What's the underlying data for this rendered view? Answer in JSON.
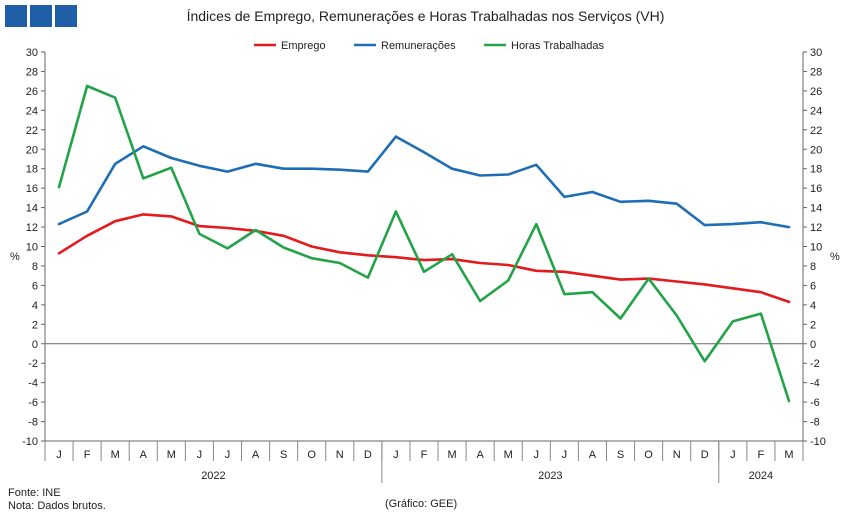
{
  "header": {
    "title": "Índices de Emprego, Remunerações e Horas Trabalhadas nos Serviços (VH)",
    "logo_color": "#1f5fa8"
  },
  "footer": {
    "source": "Fonte: INE",
    "note": "Nota: Dados brutos.",
    "credit": "(Gráfico: GEE)"
  },
  "chart_data": {
    "type": "line",
    "title": "Índices de Emprego, Remunerações e Horas Trabalhadas nos Serviços (VH)",
    "ylabel_left": "%",
    "ylabel_right": "%",
    "ylim": [
      -10,
      30
    ],
    "ytick_step": 2,
    "legend_position": "top-center",
    "grid": false,
    "categories": [
      "J",
      "F",
      "M",
      "A",
      "M",
      "J",
      "J",
      "A",
      "S",
      "O",
      "N",
      "D",
      "J",
      "F",
      "M",
      "A",
      "M",
      "J",
      "J",
      "A",
      "S",
      "O",
      "N",
      "D",
      "J",
      "F",
      "M"
    ],
    "years": [
      {
        "label": "2022",
        "start": 0,
        "end": 11
      },
      {
        "label": "2023",
        "start": 12,
        "end": 23
      },
      {
        "label": "2024",
        "start": 24,
        "end": 26
      }
    ],
    "series": [
      {
        "name": "Emprego",
        "color": "#e41a1c",
        "values": [
          9.3,
          11.1,
          12.6,
          13.3,
          13.1,
          12.1,
          11.9,
          11.6,
          11.1,
          10.0,
          9.4,
          9.1,
          8.9,
          8.6,
          8.7,
          8.3,
          8.1,
          7.5,
          7.4,
          7.0,
          6.6,
          6.7,
          6.4,
          6.1,
          5.7,
          5.3,
          4.3
        ]
      },
      {
        "name": "Remunerações",
        "color": "#1f6db5",
        "values": [
          12.3,
          13.6,
          18.5,
          20.3,
          19.1,
          18.3,
          17.7,
          18.5,
          18.0,
          18.0,
          17.9,
          17.7,
          21.3,
          19.7,
          18.0,
          17.3,
          17.4,
          18.4,
          15.1,
          15.6,
          14.6,
          14.7,
          14.4,
          12.2,
          12.3,
          12.5,
          12.0
        ]
      },
      {
        "name": "Horas Trabalhadas",
        "color": "#22a348",
        "values": [
          16.1,
          26.5,
          25.3,
          17.0,
          18.1,
          11.3,
          9.8,
          11.7,
          9.9,
          8.8,
          8.3,
          6.8,
          13.6,
          7.4,
          9.2,
          4.4,
          6.5,
          12.3,
          5.1,
          5.3,
          2.6,
          6.7,
          2.9,
          -1.8,
          2.3,
          3.1,
          -5.9
        ]
      }
    ]
  }
}
